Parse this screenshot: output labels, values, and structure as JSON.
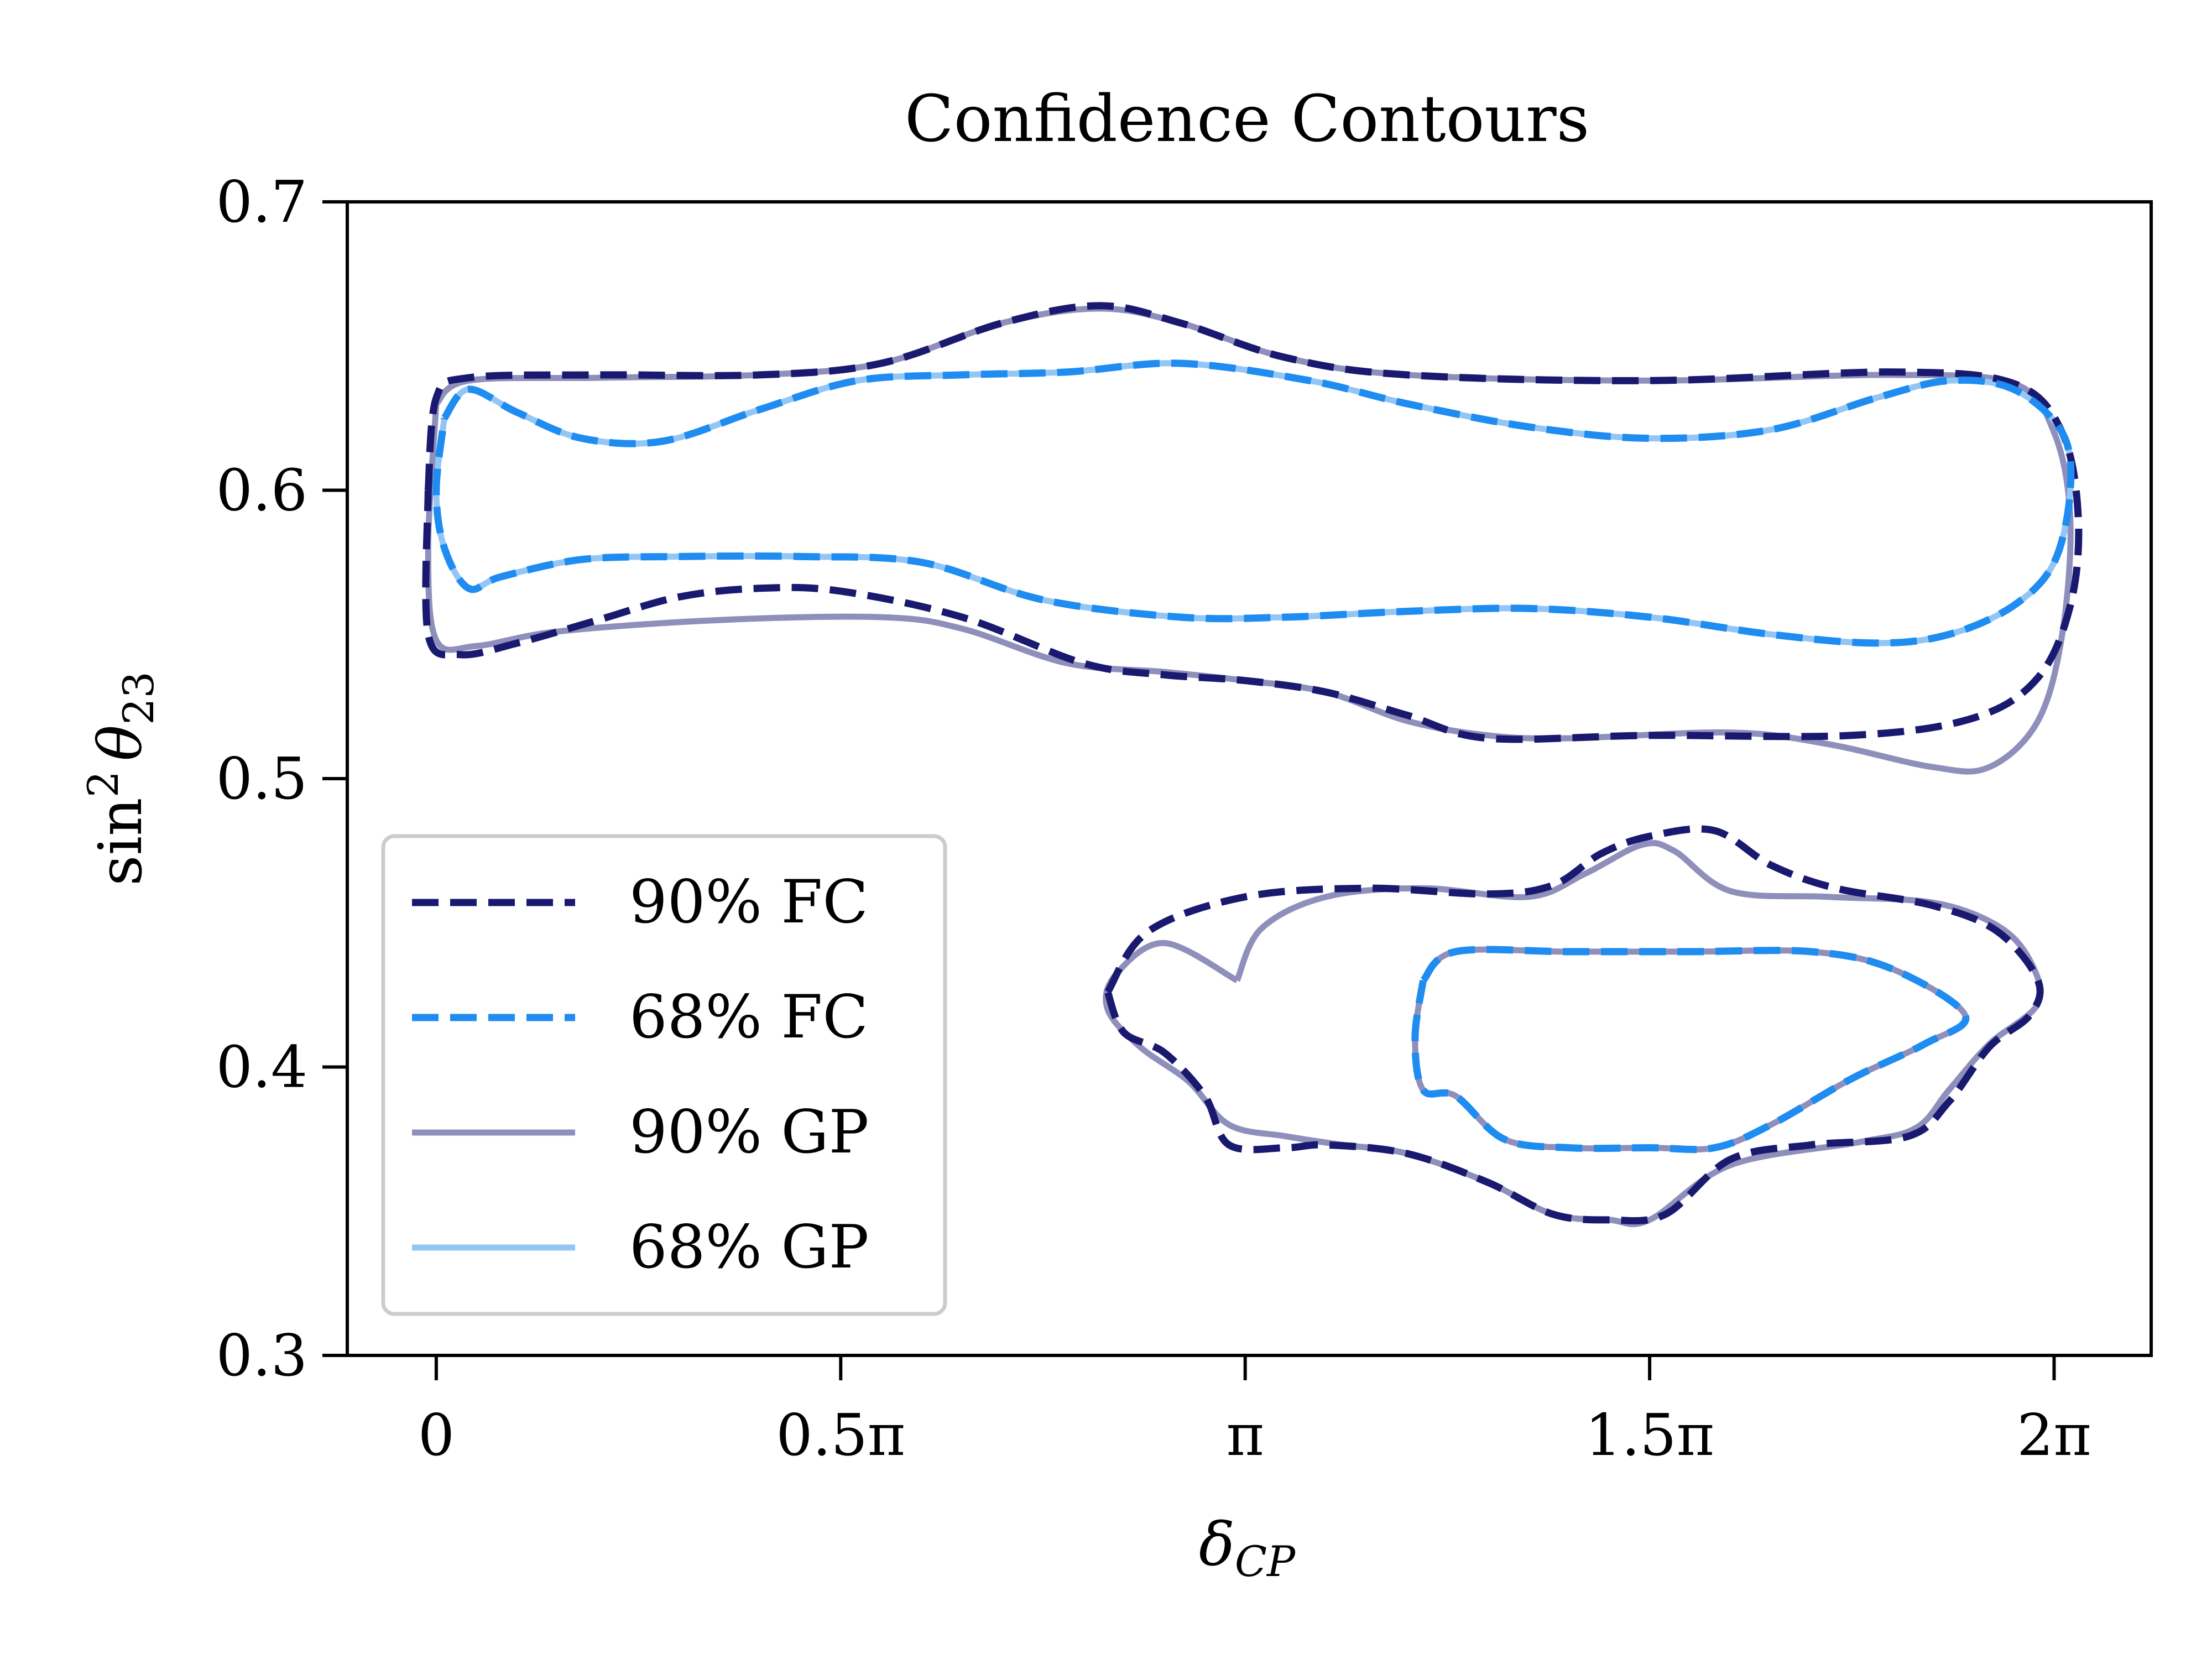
{
  "chart_data": {
    "type": "line",
    "title": "Confidence Contours",
    "xlabel_main": "δ",
    "xlabel_sub": "CP",
    "ylabel_fn": "sin",
    "ylabel_pow": "2",
    "ylabel_var": "θ",
    "ylabel_sub": "23",
    "xlim": [
      -0.11,
      2.12
    ],
    "ylim": [
      0.3,
      0.7
    ],
    "x_unit": "π",
    "x_ticks": [
      {
        "value": 0,
        "label": "0"
      },
      {
        "value": 0.5,
        "label": "0.5π"
      },
      {
        "value": 1,
        "label": "π"
      },
      {
        "value": 1.5,
        "label": "1.5π"
      },
      {
        "value": 2,
        "label": "2π"
      }
    ],
    "y_ticks": [
      {
        "value": 0.3,
        "label": "0.3"
      },
      {
        "value": 0.4,
        "label": "0.4"
      },
      {
        "value": 0.5,
        "label": "0.5"
      },
      {
        "value": 0.6,
        "label": "0.6"
      },
      {
        "value": 0.7,
        "label": "0.7"
      }
    ],
    "grid": false,
    "legend_position": "lower-left",
    "series": [
      {
        "name": "90% GP",
        "color": "#8f8fbb",
        "style": "solid",
        "regions": [
          [
            [
              0.0,
              0.63
            ],
            [
              0.04,
              0.638
            ],
            [
              0.2,
              0.639
            ],
            [
              0.4,
              0.64
            ],
            [
              0.55,
              0.644
            ],
            [
              0.7,
              0.658
            ],
            [
              0.82,
              0.663
            ],
            [
              0.92,
              0.658
            ],
            [
              1.05,
              0.646
            ],
            [
              1.2,
              0.64
            ],
            [
              1.5,
              0.638
            ],
            [
              1.8,
              0.64
            ],
            [
              1.95,
              0.637
            ],
            [
              2.0,
              0.62
            ],
            [
              2.02,
              0.59
            ],
            [
              2.01,
              0.55
            ],
            [
              1.98,
              0.52
            ],
            [
              1.92,
              0.504
            ],
            [
              1.85,
              0.504
            ],
            [
              1.72,
              0.512
            ],
            [
              1.6,
              0.516
            ],
            [
              1.4,
              0.514
            ],
            [
              1.3,
              0.515
            ],
            [
              1.2,
              0.52
            ],
            [
              1.1,
              0.53
            ],
            [
              1.0,
              0.534
            ],
            [
              0.9,
              0.537
            ],
            [
              0.78,
              0.54
            ],
            [
              0.65,
              0.552
            ],
            [
              0.55,
              0.556
            ],
            [
              0.35,
              0.555
            ],
            [
              0.15,
              0.551
            ],
            [
              0.05,
              0.546
            ],
            [
              0.0,
              0.548
            ],
            [
              -0.01,
              0.58
            ],
            [
              0.0,
              0.63
            ]
          ],
          [
            [
              0.99,
              0.43
            ],
            [
              1.02,
              0.448
            ],
            [
              1.1,
              0.459
            ],
            [
              1.22,
              0.462
            ],
            [
              1.35,
              0.459
            ],
            [
              1.42,
              0.467
            ],
            [
              1.49,
              0.477
            ],
            [
              1.53,
              0.475
            ],
            [
              1.6,
              0.461
            ],
            [
              1.72,
              0.459
            ],
            [
              1.85,
              0.457
            ],
            [
              1.93,
              0.449
            ],
            [
              1.97,
              0.437
            ],
            [
              1.98,
              0.422
            ],
            [
              1.92,
              0.408
            ],
            [
              1.87,
              0.392
            ],
            [
              1.83,
              0.379
            ],
            [
              1.76,
              0.374
            ],
            [
              1.6,
              0.366
            ],
            [
              1.5,
              0.347
            ],
            [
              1.45,
              0.347
            ],
            [
              1.38,
              0.349
            ],
            [
              1.3,
              0.36
            ],
            [
              1.2,
              0.37
            ],
            [
              1.12,
              0.373
            ],
            [
              1.05,
              0.376
            ],
            [
              0.98,
              0.38
            ],
            [
              0.93,
              0.395
            ],
            [
              0.87,
              0.407
            ],
            [
              0.83,
              0.42
            ],
            [
              0.84,
              0.432
            ],
            [
              0.9,
              0.443
            ],
            [
              0.99,
              0.43
            ]
          ],
          [
            [
              1.22,
              0.43
            ],
            [
              1.26,
              0.44
            ],
            [
              1.4,
              0.44
            ],
            [
              1.55,
              0.44
            ],
            [
              1.7,
              0.44
            ],
            [
              1.8,
              0.434
            ],
            [
              1.89,
              0.418
            ],
            [
              1.84,
              0.408
            ],
            [
              1.75,
              0.396
            ],
            [
              1.65,
              0.38
            ],
            [
              1.58,
              0.372
            ],
            [
              1.5,
              0.372
            ],
            [
              1.4,
              0.372
            ],
            [
              1.32,
              0.375
            ],
            [
              1.26,
              0.39
            ],
            [
              1.22,
              0.392
            ],
            [
              1.21,
              0.41
            ],
            [
              1.22,
              0.43
            ]
          ]
        ]
      },
      {
        "name": "68% GP",
        "color": "#93c5f5",
        "style": "solid",
        "regions": [
          [
            [
              0.01,
              0.625
            ],
            [
              0.04,
              0.635
            ],
            [
              0.1,
              0.627
            ],
            [
              0.18,
              0.618
            ],
            [
              0.28,
              0.617
            ],
            [
              0.4,
              0.628
            ],
            [
              0.52,
              0.638
            ],
            [
              0.65,
              0.64
            ],
            [
              0.78,
              0.641
            ],
            [
              0.92,
              0.644
            ],
            [
              1.08,
              0.638
            ],
            [
              1.2,
              0.63
            ],
            [
              1.35,
              0.622
            ],
            [
              1.5,
              0.618
            ],
            [
              1.65,
              0.621
            ],
            [
              1.78,
              0.632
            ],
            [
              1.87,
              0.638
            ],
            [
              1.95,
              0.635
            ],
            [
              2.01,
              0.62
            ],
            [
              2.02,
              0.6
            ],
            [
              2.0,
              0.575
            ],
            [
              1.95,
              0.56
            ],
            [
              1.87,
              0.55
            ],
            [
              1.78,
              0.547
            ],
            [
              1.65,
              0.55
            ],
            [
              1.5,
              0.556
            ],
            [
              1.35,
              0.559
            ],
            [
              1.2,
              0.558
            ],
            [
              1.05,
              0.556
            ],
            [
              0.92,
              0.556
            ],
            [
              0.75,
              0.562
            ],
            [
              0.6,
              0.575
            ],
            [
              0.45,
              0.577
            ],
            [
              0.3,
              0.577
            ],
            [
              0.18,
              0.576
            ],
            [
              0.08,
              0.57
            ],
            [
              0.04,
              0.566
            ],
            [
              0.01,
              0.58
            ],
            [
              0.0,
              0.6
            ],
            [
              0.01,
              0.625
            ]
          ]
        ]
      },
      {
        "name": "90% FC",
        "color": "#191970",
        "style": "dashed",
        "regions": [
          [
            [
              -0.01,
              0.6
            ],
            [
              0.0,
              0.632
            ],
            [
              0.04,
              0.639
            ],
            [
              0.2,
              0.64
            ],
            [
              0.4,
              0.64
            ],
            [
              0.55,
              0.644
            ],
            [
              0.7,
              0.658
            ],
            [
              0.82,
              0.664
            ],
            [
              0.92,
              0.658
            ],
            [
              1.05,
              0.646
            ],
            [
              1.2,
              0.64
            ],
            [
              1.5,
              0.638
            ],
            [
              1.8,
              0.641
            ],
            [
              1.95,
              0.637
            ],
            [
              2.01,
              0.62
            ],
            [
              2.03,
              0.59
            ],
            [
              2.02,
              0.56
            ],
            [
              1.98,
              0.535
            ],
            [
              1.9,
              0.521
            ],
            [
              1.75,
              0.515
            ],
            [
              1.5,
              0.515
            ],
            [
              1.3,
              0.514
            ],
            [
              1.2,
              0.522
            ],
            [
              1.1,
              0.53
            ],
            [
              1.0,
              0.534
            ],
            [
              0.9,
              0.536
            ],
            [
              0.8,
              0.54
            ],
            [
              0.65,
              0.556
            ],
            [
              0.5,
              0.565
            ],
            [
              0.4,
              0.566
            ],
            [
              0.3,
              0.563
            ],
            [
              0.2,
              0.555
            ],
            [
              0.1,
              0.547
            ],
            [
              0.03,
              0.543
            ],
            [
              -0.01,
              0.55
            ],
            [
              -0.01,
              0.6
            ]
          ],
          [
            [
              0.83,
              0.426
            ],
            [
              0.88,
              0.447
            ],
            [
              1.0,
              0.459
            ],
            [
              1.15,
              0.462
            ],
            [
              1.3,
              0.46
            ],
            [
              1.38,
              0.463
            ],
            [
              1.44,
              0.474
            ],
            [
              1.5,
              0.48
            ],
            [
              1.58,
              0.482
            ],
            [
              1.65,
              0.47
            ],
            [
              1.73,
              0.462
            ],
            [
              1.85,
              0.456
            ],
            [
              1.93,
              0.447
            ],
            [
              1.98,
              0.43
            ],
            [
              1.97,
              0.418
            ],
            [
              1.92,
              0.407
            ],
            [
              1.87,
              0.388
            ],
            [
              1.82,
              0.376
            ],
            [
              1.7,
              0.373
            ],
            [
              1.6,
              0.368
            ],
            [
              1.52,
              0.349
            ],
            [
              1.45,
              0.347
            ],
            [
              1.38,
              0.349
            ],
            [
              1.3,
              0.36
            ],
            [
              1.2,
              0.37
            ],
            [
              1.1,
              0.373
            ],
            [
              1.05,
              0.372
            ],
            [
              0.98,
              0.373
            ],
            [
              0.95,
              0.39
            ],
            [
              0.9,
              0.405
            ],
            [
              0.85,
              0.412
            ],
            [
              0.83,
              0.426
            ]
          ]
        ]
      },
      {
        "name": "68% FC",
        "color": "#1e8cf0",
        "style": "dashed",
        "regions": [
          [
            [
              0.01,
              0.625
            ],
            [
              0.04,
              0.635
            ],
            [
              0.1,
              0.627
            ],
            [
              0.18,
              0.618
            ],
            [
              0.28,
              0.617
            ],
            [
              0.4,
              0.628
            ],
            [
              0.52,
              0.638
            ],
            [
              0.65,
              0.64
            ],
            [
              0.78,
              0.641
            ],
            [
              0.92,
              0.644
            ],
            [
              1.08,
              0.638
            ],
            [
              1.2,
              0.63
            ],
            [
              1.35,
              0.622
            ],
            [
              1.5,
              0.618
            ],
            [
              1.65,
              0.621
            ],
            [
              1.78,
              0.632
            ],
            [
              1.87,
              0.638
            ],
            [
              1.95,
              0.635
            ],
            [
              2.01,
              0.62
            ],
            [
              2.02,
              0.6
            ],
            [
              2.0,
              0.575
            ],
            [
              1.95,
              0.56
            ],
            [
              1.87,
              0.55
            ],
            [
              1.78,
              0.547
            ],
            [
              1.65,
              0.55
            ],
            [
              1.5,
              0.556
            ],
            [
              1.35,
              0.559
            ],
            [
              1.2,
              0.558
            ],
            [
              1.05,
              0.556
            ],
            [
              0.92,
              0.556
            ],
            [
              0.75,
              0.562
            ],
            [
              0.6,
              0.575
            ],
            [
              0.45,
              0.577
            ],
            [
              0.3,
              0.577
            ],
            [
              0.18,
              0.576
            ],
            [
              0.08,
              0.57
            ],
            [
              0.04,
              0.566
            ],
            [
              0.01,
              0.58
            ],
            [
              0.0,
              0.6
            ],
            [
              0.01,
              0.625
            ]
          ],
          [
            [
              1.22,
              0.43
            ],
            [
              1.26,
              0.44
            ],
            [
              1.4,
              0.44
            ],
            [
              1.55,
              0.44
            ],
            [
              1.7,
              0.44
            ],
            [
              1.8,
              0.434
            ],
            [
              1.89,
              0.418
            ],
            [
              1.84,
              0.408
            ],
            [
              1.75,
              0.396
            ],
            [
              1.65,
              0.38
            ],
            [
              1.58,
              0.372
            ],
            [
              1.5,
              0.372
            ],
            [
              1.4,
              0.372
            ],
            [
              1.32,
              0.375
            ],
            [
              1.26,
              0.39
            ],
            [
              1.22,
              0.392
            ],
            [
              1.21,
              0.41
            ],
            [
              1.22,
              0.43
            ]
          ]
        ]
      }
    ],
    "legend": [
      {
        "label": "90% FC",
        "color": "#191970",
        "style": "dashed"
      },
      {
        "label": "68% FC",
        "color": "#1e8cf0",
        "style": "dashed"
      },
      {
        "label": "90% GP",
        "color": "#8f8fbb",
        "style": "solid"
      },
      {
        "label": "68% GP",
        "color": "#93c5f5",
        "style": "solid"
      }
    ]
  }
}
